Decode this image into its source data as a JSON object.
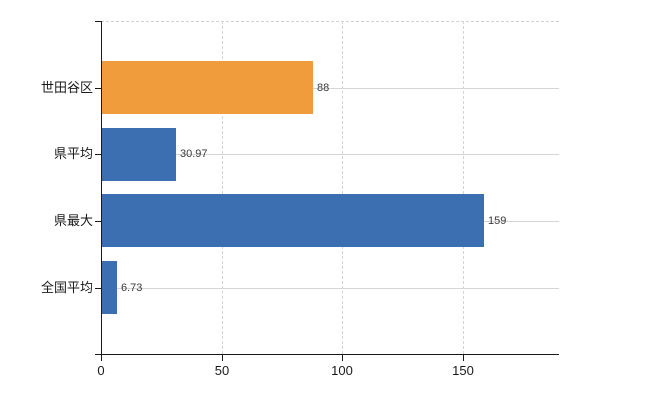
{
  "chart_data": {
    "type": "bar",
    "orientation": "horizontal",
    "title": "",
    "xlabel": "",
    "ylabel": "",
    "categories": [
      "世田谷区",
      "県平均",
      "県最大",
      "全国平均"
    ],
    "values": [
      88,
      30.97,
      159,
      6.73
    ],
    "value_labels": [
      "88",
      "30.97",
      "159",
      "6.73"
    ],
    "series_colors": [
      "#f09c3c",
      "#3b6fb2",
      "#3b6fb2",
      "#3b6fb2"
    ],
    "x_ticks": [
      "0",
      "50",
      "100",
      "150"
    ],
    "x_tick_values": [
      0,
      50,
      100,
      150
    ],
    "xlim": [
      0,
      190
    ],
    "grid": {
      "horizontal_style": "solid",
      "vertical_style": "dashed",
      "top_border_style": "dashed"
    },
    "legend": "none",
    "background_color": "#ffffff"
  }
}
